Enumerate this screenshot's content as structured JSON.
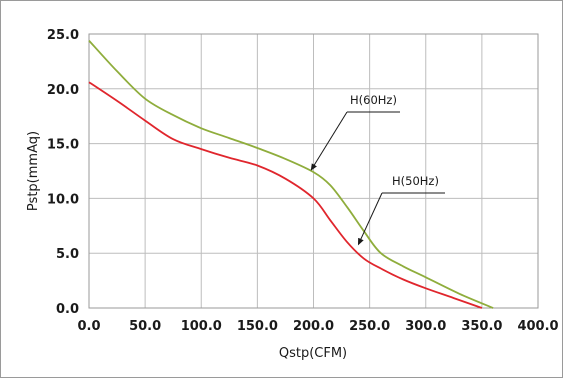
{
  "chart_data": {
    "type": "line",
    "xlabel": "Qstp(CFM)",
    "ylabel": "Pstp(mmAq)",
    "xlim": [
      0,
      400
    ],
    "ylim": [
      0,
      25
    ],
    "x_ticks": [
      "0.0",
      "50.0",
      "100.0",
      "150.0",
      "200.0",
      "250.0",
      "300.0",
      "350.0",
      "400.0"
    ],
    "y_ticks": [
      "25.0",
      "20.0",
      "15.0",
      "10.0",
      "5.0",
      "0.0"
    ],
    "grid": true,
    "series": [
      {
        "name": "H(60Hz)",
        "color": "#8fad3c",
        "points": [
          [
            0,
            24.4
          ],
          [
            25,
            21.6
          ],
          [
            50,
            19.1
          ],
          [
            75,
            17.6
          ],
          [
            100,
            16.4
          ],
          [
            125,
            15.5
          ],
          [
            150,
            14.6
          ],
          [
            175,
            13.6
          ],
          [
            200,
            12.4
          ],
          [
            215,
            11.2
          ],
          [
            230,
            9.2
          ],
          [
            245,
            7.0
          ],
          [
            260,
            5.0
          ],
          [
            280,
            3.8
          ],
          [
            300,
            2.8
          ],
          [
            330,
            1.3
          ],
          [
            360,
            0.0
          ]
        ]
      },
      {
        "name": "H(50Hz)",
        "color": "#e0262d",
        "points": [
          [
            0,
            20.6
          ],
          [
            25,
            18.9
          ],
          [
            50,
            17.1
          ],
          [
            75,
            15.4
          ],
          [
            100,
            14.5
          ],
          [
            125,
            13.7
          ],
          [
            150,
            13.0
          ],
          [
            175,
            11.8
          ],
          [
            200,
            10.0
          ],
          [
            215,
            8.0
          ],
          [
            230,
            6.0
          ],
          [
            245,
            4.5
          ],
          [
            260,
            3.6
          ],
          [
            280,
            2.6
          ],
          [
            300,
            1.8
          ],
          [
            325,
            0.9
          ],
          [
            350,
            0.0
          ]
        ]
      }
    ],
    "annotations": [
      {
        "text": "H(60Hz)",
        "target": [
          198,
          12.6
        ]
      },
      {
        "text": "H(50Hz)",
        "target": [
          240,
          5.8
        ]
      }
    ]
  }
}
